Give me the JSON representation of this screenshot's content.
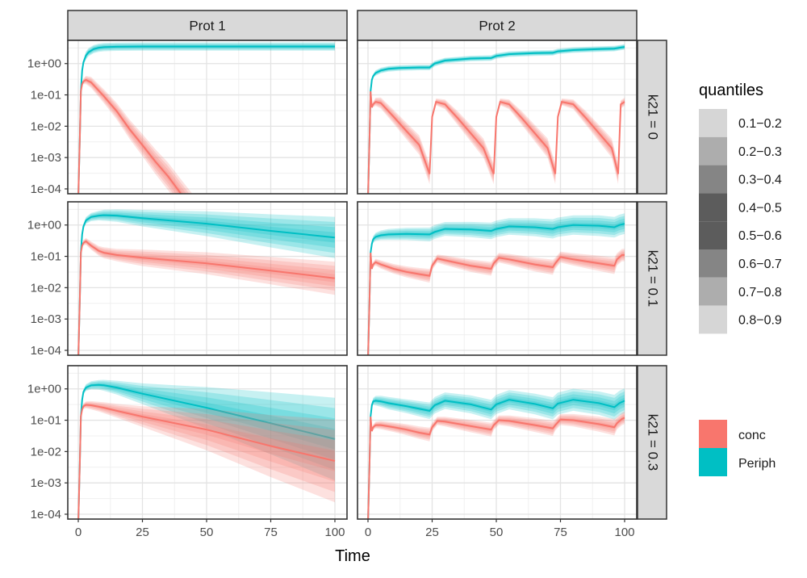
{
  "chart_data": {
    "type": "line",
    "xlabel": "Time",
    "ylabel": "",
    "y_scale": "log10",
    "xlim": [
      0,
      100
    ],
    "ylim": [
      7e-05,
      5.5
    ],
    "x_ticks": [
      0,
      25,
      50,
      75,
      100
    ],
    "x_tick_labels": [
      "0",
      "25",
      "50",
      "75",
      "100"
    ],
    "y_ticks": [
      1,
      0.1,
      0.01,
      0.001,
      0.0001
    ],
    "y_tick_labels": [
      "1e+00",
      "1e-01",
      "1e-02",
      "1e-03",
      "1e-04"
    ],
    "grid": true,
    "columns": [
      "Prot 1",
      "Prot 2"
    ],
    "rows": [
      "k21 = 0",
      "k21 = 0.1",
      "k21 = 0.3"
    ],
    "legend_placement": "right",
    "quantiles_legend": {
      "title": "quantiles",
      "entries": [
        {
          "label": "0.1−0.2",
          "color": "#d6d6d6"
        },
        {
          "label": "0.2−0.3",
          "color": "#adadad"
        },
        {
          "label": "0.3−0.4",
          "color": "#858585"
        },
        {
          "label": "0.4−0.5",
          "color": "#5c5c5c"
        },
        {
          "label": "0.5−0.6",
          "color": "#5c5c5c"
        },
        {
          "label": "0.6−0.7",
          "color": "#858585"
        },
        {
          "label": "0.7−0.8",
          "color": "#adadad"
        },
        {
          "label": "0.8−0.9",
          "color": "#d6d6d6"
        }
      ]
    },
    "series_legend": [
      {
        "name": "conc",
        "color": "#f8766d"
      },
      {
        "name": "Periph",
        "color": "#00bfc4"
      }
    ],
    "panels": [
      {
        "row": "k21 = 0",
        "col": "Prot 1",
        "series": [
          {
            "name": "Periph",
            "x": [
              0,
              0.6,
              1,
              1.5,
              2,
              3,
              4,
              6,
              8,
              10,
              15,
              25,
              50,
              75,
              100
            ],
            "y": [
              5e-05,
              0.004,
              0.13,
              0.6,
              1.1,
              1.8,
              2.3,
              2.9,
              3.2,
              3.35,
              3.45,
              3.5,
              3.5,
              3.5,
              3.5
            ],
            "spread": [
              0,
              0,
              0,
              0.02,
              0.04,
              0.06,
              0.06,
              0.06,
              0.06,
              0.06,
              0.06,
              0.06,
              0.06,
              0.06,
              0.06
            ]
          },
          {
            "name": "conc",
            "x": [
              0,
              0.6,
              1,
              1.5,
              2,
              3,
              5,
              10,
              15,
              20,
              25,
              30,
              35,
              40,
              45
            ],
            "y": [
              5e-05,
              0.004,
              0.13,
              0.22,
              0.27,
              0.3,
              0.25,
              0.09,
              0.03,
              0.008,
              0.0025,
              0.00075,
              0.00025,
              7e-05,
              2e-05
            ],
            "spread": [
              0,
              0,
              0,
              0.02,
              0.04,
              0.06,
              0.08,
              0.1,
              0.12,
              0.14,
              0.16,
              0.18,
              0.2,
              0.21,
              0.22
            ]
          }
        ]
      },
      {
        "row": "k21 = 0",
        "col": "Prot 2",
        "series": [
          {
            "name": "Periph",
            "x": [
              0,
              0.6,
              1,
              1.5,
              2,
              3,
              5,
              8,
              12,
              20,
              24,
              26,
              30,
              40,
              48,
              50,
              55,
              65,
              72,
              74,
              80,
              90,
              96,
              98,
              100
            ],
            "y": [
              5e-05,
              0.004,
              0.13,
              0.3,
              0.4,
              0.5,
              0.6,
              0.68,
              0.72,
              0.75,
              0.75,
              1.0,
              1.25,
              1.45,
              1.5,
              1.75,
              2.0,
              2.15,
              2.2,
              2.45,
              2.7,
              2.9,
              3.0,
              3.2,
              3.4
            ],
            "spread": [
              0,
              0,
              0,
              0.02,
              0.03,
              0.04,
              0.04,
              0.04,
              0.04,
              0.04,
              0.04,
              0.04,
              0.04,
              0.04,
              0.04,
              0.04,
              0.04,
              0.04,
              0.04,
              0.04,
              0.04,
              0.04,
              0.04,
              0.04,
              0.04
            ]
          },
          {
            "name": "conc",
            "x": [
              0,
              0.6,
              1,
              1.5,
              2,
              3,
              5,
              10,
              15,
              20,
              24,
              25,
              26.5,
              30,
              35,
              40,
              45,
              49,
              50,
              51.5,
              55,
              60,
              65,
              70,
              73,
              74,
              75.5,
              80,
              85,
              90,
              95,
              97.5,
              98.5,
              100
            ],
            "y": [
              5e-05,
              0.004,
              0.13,
              0.04,
              0.05,
              0.06,
              0.055,
              0.02,
              0.007,
              0.0025,
              0.0003,
              0.02,
              0.06,
              0.05,
              0.018,
              0.006,
              0.002,
              0.0003,
              0.02,
              0.06,
              0.05,
              0.018,
              0.006,
              0.002,
              0.0003,
              0.02,
              0.06,
              0.05,
              0.018,
              0.006,
              0.002,
              0.0003,
              0.05,
              0.06
            ],
            "spread": [
              0,
              0,
              0,
              0.02,
              0.04,
              0.06,
              0.08,
              0.1,
              0.12,
              0.14,
              0.15,
              0.05,
              0.05,
              0.07,
              0.1,
              0.12,
              0.14,
              0.15,
              0.05,
              0.05,
              0.07,
              0.1,
              0.12,
              0.14,
              0.15,
              0.05,
              0.05,
              0.07,
              0.1,
              0.12,
              0.14,
              0.15,
              0.06,
              0.06
            ]
          }
        ]
      },
      {
        "row": "k21 = 0.1",
        "col": "Prot 1",
        "series": [
          {
            "name": "Periph",
            "x": [
              0,
              0.6,
              1,
              1.5,
              2,
              3,
              5,
              8,
              10,
              15,
              25,
              50,
              75,
              100
            ],
            "y": [
              5e-05,
              0.004,
              0.13,
              0.5,
              0.9,
              1.4,
              1.8,
              2.0,
              2.05,
              2.0,
              1.65,
              1.1,
              0.65,
              0.4
            ],
            "spread": [
              0,
              0,
              0,
              0.02,
              0.04,
              0.05,
              0.06,
              0.07,
              0.08,
              0.09,
              0.12,
              0.18,
              0.24,
              0.3
            ]
          },
          {
            "name": "conc",
            "x": [
              0,
              0.6,
              1,
              1.5,
              2,
              3,
              5,
              8,
              10,
              15,
              25,
              50,
              75,
              100
            ],
            "y": [
              5e-05,
              0.004,
              0.13,
              0.22,
              0.27,
              0.3,
              0.22,
              0.15,
              0.13,
              0.11,
              0.09,
              0.06,
              0.035,
              0.02
            ],
            "spread": [
              0,
              0,
              0,
              0.02,
              0.04,
              0.05,
              0.06,
              0.07,
              0.08,
              0.09,
              0.12,
              0.16,
              0.2,
              0.24
            ]
          }
        ]
      },
      {
        "row": "k21 = 0.1",
        "col": "Prot 2",
        "series": [
          {
            "name": "Periph",
            "x": [
              0,
              0.6,
              1,
              1.5,
              2,
              3,
              5,
              8,
              15,
              24,
              26,
              30,
              40,
              48,
              50,
              55,
              65,
              72,
              74,
              80,
              90,
              96,
              98,
              100
            ],
            "y": [
              5e-05,
              0.004,
              0.13,
              0.25,
              0.35,
              0.42,
              0.47,
              0.5,
              0.52,
              0.5,
              0.6,
              0.75,
              0.72,
              0.65,
              0.75,
              0.9,
              0.85,
              0.75,
              0.85,
              1.0,
              0.95,
              0.85,
              1.0,
              1.1
            ],
            "spread": [
              0,
              0,
              0,
              0.03,
              0.05,
              0.06,
              0.07,
              0.08,
              0.09,
              0.1,
              0.1,
              0.1,
              0.11,
              0.12,
              0.12,
              0.12,
              0.13,
              0.14,
              0.14,
              0.14,
              0.15,
              0.15,
              0.15,
              0.15
            ]
          },
          {
            "name": "conc",
            "x": [
              0,
              0.6,
              1,
              1.5,
              2,
              3,
              5,
              10,
              15,
              20,
              24,
              25,
              27,
              30,
              40,
              48,
              49,
              51,
              55,
              65,
              72,
              73,
              75,
              80,
              90,
              96,
              97,
              99,
              100
            ],
            "y": [
              5e-05,
              0.004,
              0.13,
              0.04,
              0.055,
              0.065,
              0.055,
              0.04,
              0.032,
              0.027,
              0.024,
              0.05,
              0.085,
              0.075,
              0.05,
              0.04,
              0.06,
              0.09,
              0.08,
              0.055,
              0.045,
              0.06,
              0.095,
              0.08,
              0.06,
              0.05,
              0.08,
              0.11,
              0.11
            ],
            "spread": [
              0,
              0,
              0,
              0.02,
              0.04,
              0.05,
              0.06,
              0.07,
              0.08,
              0.09,
              0.1,
              0.06,
              0.06,
              0.07,
              0.09,
              0.1,
              0.07,
              0.07,
              0.08,
              0.1,
              0.11,
              0.08,
              0.08,
              0.09,
              0.11,
              0.12,
              0.09,
              0.09,
              0.09
            ]
          }
        ]
      },
      {
        "row": "k21 = 0.3",
        "col": "Prot 1",
        "series": [
          {
            "name": "Periph",
            "x": [
              0,
              0.6,
              1,
              1.5,
              2,
              3,
              5,
              8,
              10,
              15,
              25,
              50,
              75,
              100
            ],
            "y": [
              5e-05,
              0.004,
              0.13,
              0.45,
              0.8,
              1.1,
              1.3,
              1.35,
              1.3,
              1.1,
              0.7,
              0.25,
              0.08,
              0.025
            ],
            "spread": [
              0,
              0,
              0,
              0.02,
              0.04,
              0.05,
              0.06,
              0.07,
              0.08,
              0.1,
              0.15,
              0.3,
              0.45,
              0.6
            ]
          },
          {
            "name": "conc",
            "x": [
              0,
              0.6,
              1,
              1.5,
              2,
              3,
              5,
              8,
              10,
              15,
              25,
              50,
              75,
              100
            ],
            "y": [
              5e-05,
              0.004,
              0.13,
              0.22,
              0.28,
              0.31,
              0.3,
              0.27,
              0.25,
              0.2,
              0.13,
              0.05,
              0.015,
              0.005
            ],
            "spread": [
              0,
              0,
              0,
              0.02,
              0.04,
              0.05,
              0.06,
              0.07,
              0.08,
              0.1,
              0.15,
              0.3,
              0.45,
              0.6
            ]
          }
        ]
      },
      {
        "row": "k21 = 0.3",
        "col": "Prot 2",
        "series": [
          {
            "name": "Periph",
            "x": [
              0,
              0.6,
              1,
              1.5,
              2,
              3,
              5,
              8,
              15,
              24,
              26,
              30,
              40,
              48,
              50,
              55,
              65,
              72,
              74,
              80,
              90,
              96,
              98,
              100
            ],
            "y": [
              5e-05,
              0.004,
              0.13,
              0.3,
              0.4,
              0.42,
              0.4,
              0.35,
              0.28,
              0.2,
              0.3,
              0.42,
              0.32,
              0.22,
              0.32,
              0.45,
              0.33,
              0.24,
              0.34,
              0.45,
              0.35,
              0.26,
              0.35,
              0.42
            ],
            "spread": [
              0,
              0,
              0,
              0.03,
              0.05,
              0.07,
              0.08,
              0.09,
              0.1,
              0.12,
              0.12,
              0.12,
              0.13,
              0.14,
              0.14,
              0.14,
              0.15,
              0.16,
              0.16,
              0.16,
              0.17,
              0.18,
              0.18,
              0.18
            ]
          },
          {
            "name": "conc",
            "x": [
              0,
              0.6,
              1,
              1.5,
              2,
              3,
              5,
              10,
              15,
              20,
              24,
              25,
              27,
              30,
              40,
              48,
              49,
              51,
              55,
              65,
              72,
              73,
              75,
              80,
              90,
              96,
              97,
              99,
              100
            ],
            "y": [
              5e-05,
              0.004,
              0.13,
              0.045,
              0.06,
              0.07,
              0.07,
              0.06,
              0.05,
              0.04,
              0.035,
              0.06,
              0.095,
              0.09,
              0.065,
              0.05,
              0.07,
              0.1,
              0.095,
              0.07,
              0.055,
              0.07,
              0.105,
              0.1,
              0.075,
              0.06,
              0.08,
              0.11,
              0.12
            ],
            "spread": [
              0,
              0,
              0,
              0.02,
              0.04,
              0.05,
              0.06,
              0.07,
              0.08,
              0.09,
              0.1,
              0.06,
              0.06,
              0.07,
              0.09,
              0.1,
              0.07,
              0.07,
              0.08,
              0.1,
              0.11,
              0.08,
              0.08,
              0.09,
              0.11,
              0.12,
              0.09,
              0.09,
              0.09
            ]
          }
        ]
      }
    ]
  }
}
